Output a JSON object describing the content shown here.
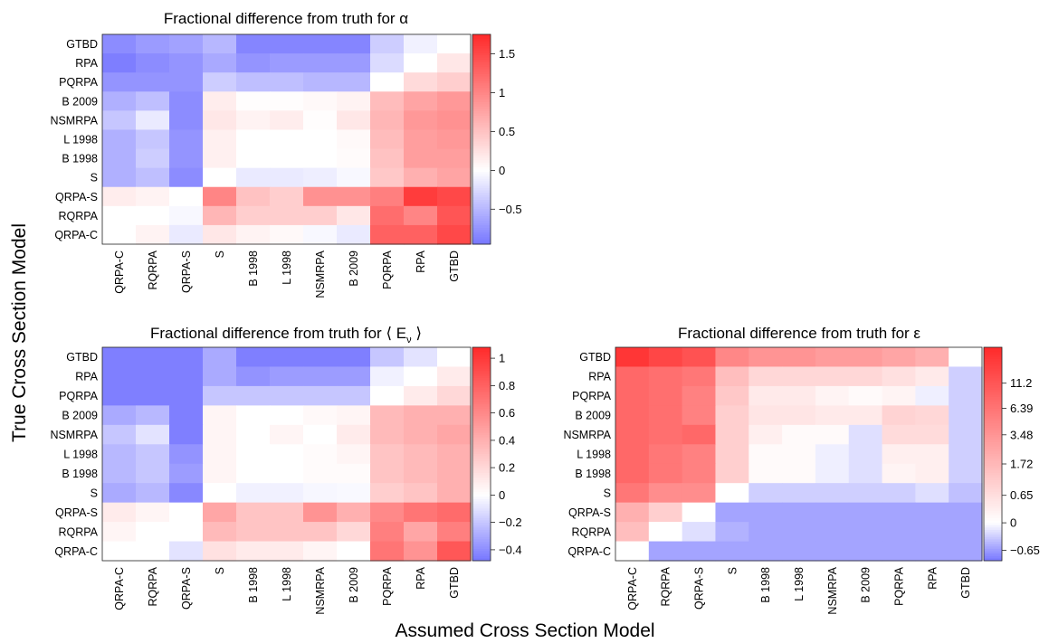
{
  "y_axis_label": "True Cross Section Model",
  "x_axis_label": "Assumed Cross Section Model",
  "chart_data": [
    {
      "type": "heatmap",
      "title": "Fractional difference from truth for α",
      "rows": [
        "GTBD",
        "RPA",
        "PQRPA",
        "B 2009",
        "NSMRPA",
        "L 1998",
        "B 1998",
        "S",
        "QRPA-S",
        "RQRPA",
        "QRPA-C"
      ],
      "columns": [
        "QRPA-C",
        "RQRPA",
        "QRPA-S",
        "S",
        "B 1998",
        "L 1998",
        "NSMRPA",
        "B 2009",
        "PQRPA",
        "RPA",
        "GTBD"
      ],
      "values": [
        [
          -0.8,
          -0.7,
          -0.65,
          -0.5,
          -0.85,
          -0.85,
          -0.85,
          -0.85,
          -0.35,
          -0.1,
          0.0
        ],
        [
          -0.9,
          -0.8,
          -0.75,
          -0.6,
          -0.75,
          -0.7,
          -0.7,
          -0.7,
          -0.25,
          0.0,
          0.2
        ],
        [
          -0.75,
          -0.75,
          -0.75,
          -0.35,
          -0.45,
          -0.45,
          -0.5,
          -0.5,
          0.0,
          0.3,
          0.4
        ],
        [
          -0.55,
          -0.45,
          -0.8,
          0.15,
          0.02,
          0.02,
          0.05,
          0.1,
          0.55,
          0.75,
          0.85
        ],
        [
          -0.4,
          -0.15,
          -0.8,
          0.2,
          0.1,
          0.15,
          0.02,
          0.2,
          0.6,
          0.85,
          0.9
        ],
        [
          -0.55,
          -0.4,
          -0.75,
          0.12,
          0.0,
          0.0,
          0.0,
          0.05,
          0.55,
          0.8,
          0.85
        ],
        [
          -0.55,
          -0.35,
          -0.75,
          0.12,
          0.0,
          0.0,
          0.0,
          0.03,
          0.5,
          0.8,
          0.8
        ],
        [
          -0.55,
          -0.45,
          -0.8,
          0.0,
          -0.15,
          -0.15,
          -0.12,
          -0.05,
          0.45,
          0.65,
          0.75
        ],
        [
          0.15,
          0.1,
          0.0,
          1.0,
          0.5,
          0.4,
          0.9,
          0.9,
          1.05,
          1.6,
          1.5
        ],
        [
          0.0,
          0.0,
          -0.05,
          0.6,
          0.4,
          0.4,
          0.4,
          0.2,
          1.2,
          1.0,
          1.4
        ],
        [
          0.0,
          0.1,
          -0.15,
          0.2,
          0.1,
          0.05,
          -0.05,
          -0.15,
          1.3,
          1.3,
          1.5
        ]
      ],
      "colorbar_ticks": [
        1.5,
        1,
        0.5,
        0,
        -0.5
      ],
      "colorbar_tick_labels": [
        "1.5",
        "1",
        "0.5",
        "0",
        "−0.5"
      ],
      "colorbar_range": [
        -0.95,
        1.75
      ],
      "colors": {
        "negative": "#7777ff",
        "zero": "#ffffff",
        "positive": "#ff2a2a"
      }
    },
    {
      "type": "heatmap",
      "title": "Fractional difference from truth for ⟨ E",
      "title_subscript": "ν",
      "title_suffix": " ⟩",
      "rows": [
        "GTBD",
        "RPA",
        "PQRPA",
        "B 2009",
        "NSMRPA",
        "L 1998",
        "B 1998",
        "S",
        "QRPA-S",
        "RQRPA",
        "QRPA-C"
      ],
      "columns": [
        "QRPA-C",
        "RQRPA",
        "QRPA-S",
        "S",
        "B 1998",
        "L 1998",
        "NSMRPA",
        "B 2009",
        "PQRPA",
        "RPA",
        "GTBD"
      ],
      "values": [
        [
          -0.45,
          -0.45,
          -0.45,
          -0.3,
          -0.45,
          -0.45,
          -0.45,
          -0.45,
          -0.2,
          -0.1,
          0.0
        ],
        [
          -0.45,
          -0.45,
          -0.45,
          -0.3,
          -0.38,
          -0.35,
          -0.35,
          -0.35,
          -0.05,
          0.0,
          0.1
        ],
        [
          -0.45,
          -0.45,
          -0.45,
          -0.2,
          -0.2,
          -0.2,
          -0.2,
          -0.2,
          0.0,
          0.1,
          0.2
        ],
        [
          -0.3,
          -0.25,
          -0.45,
          0.05,
          0.0,
          0.0,
          0.03,
          0.05,
          0.35,
          0.4,
          0.4
        ],
        [
          -0.2,
          -0.1,
          -0.45,
          0.05,
          0.0,
          0.05,
          0.0,
          0.1,
          0.35,
          0.4,
          0.45
        ],
        [
          -0.25,
          -0.2,
          -0.38,
          0.05,
          0.0,
          0.0,
          0.02,
          0.05,
          0.3,
          0.35,
          0.4
        ],
        [
          -0.25,
          -0.2,
          -0.35,
          0.05,
          0.0,
          0.0,
          0.02,
          0.02,
          0.3,
          0.35,
          0.4
        ],
        [
          -0.3,
          -0.25,
          -0.42,
          0.0,
          -0.05,
          -0.05,
          -0.03,
          -0.02,
          0.25,
          0.3,
          0.4
        ],
        [
          0.1,
          0.05,
          0.0,
          0.45,
          0.3,
          0.3,
          0.55,
          0.4,
          0.6,
          0.7,
          0.75
        ],
        [
          0.05,
          0.0,
          0.0,
          0.35,
          0.3,
          0.3,
          0.3,
          0.2,
          0.65,
          0.45,
          0.65
        ],
        [
          0.0,
          0.0,
          -0.1,
          0.15,
          0.1,
          0.1,
          0.05,
          0.0,
          0.7,
          0.55,
          0.85
        ]
      ],
      "colorbar_ticks": [
        1,
        0.8,
        0.6,
        0.4,
        0.2,
        0,
        -0.2,
        -0.4
      ],
      "colorbar_tick_labels": [
        "1",
        "0.8",
        "0.6",
        "0.4",
        "0.2",
        "0",
        "−0.2",
        "−0.4"
      ],
      "colorbar_range": [
        -0.48,
        1.08
      ],
      "colors": {
        "negative": "#7777ff",
        "zero": "#ffffff",
        "positive": "#ff2a2a"
      }
    },
    {
      "type": "heatmap",
      "title": "Fractional difference from truth for ε",
      "rows": [
        "GTBD",
        "RPA",
        "PQRPA",
        "B 2009",
        "NSMRPA",
        "L 1998",
        "B 1998",
        "S",
        "QRPA-S",
        "RQRPA",
        "QRPA-C"
      ],
      "columns": [
        "QRPA-C",
        "RQRPA",
        "QRPA-S",
        "S",
        "B 1998",
        "L 1998",
        "NSMRPA",
        "B 2009",
        "PQRPA",
        "RPA",
        "GTBD"
      ],
      "values": [
        [
          20.0,
          15.0,
          12.0,
          4.5,
          3.5,
          3.5,
          3.0,
          3.0,
          2.5,
          2.0,
          0.0
        ],
        [
          8.0,
          7.0,
          6.0,
          1.5,
          0.8,
          0.8,
          0.8,
          0.8,
          0.6,
          0.4,
          -0.3
        ],
        [
          8.0,
          7.0,
          5.0,
          1.2,
          0.4,
          0.4,
          0.2,
          0.1,
          0.2,
          -0.1,
          -0.3
        ],
        [
          8.0,
          7.0,
          5.0,
          1.0,
          0.5,
          0.5,
          0.4,
          0.4,
          0.9,
          0.8,
          -0.3
        ],
        [
          8.0,
          7.0,
          8.0,
          1.0,
          0.3,
          0.1,
          0.1,
          -0.2,
          0.7,
          0.7,
          -0.3
        ],
        [
          8.0,
          6.0,
          5.0,
          1.0,
          0.1,
          0.1,
          -0.1,
          -0.2,
          0.3,
          0.3,
          -0.3
        ],
        [
          8.0,
          6.0,
          5.0,
          1.0,
          0.1,
          0.1,
          -0.1,
          -0.2,
          0.2,
          0.3,
          -0.3
        ],
        [
          6.0,
          4.0,
          4.0,
          0.0,
          -0.3,
          -0.3,
          -0.3,
          -0.3,
          -0.3,
          -0.2,
          -0.4
        ],
        [
          2.0,
          1.0,
          0.0,
          -0.6,
          -0.6,
          -0.6,
          -0.6,
          -0.6,
          -0.6,
          -0.6,
          -0.6
        ],
        [
          1.5,
          0.0,
          -0.2,
          -0.5,
          -0.6,
          -0.6,
          -0.6,
          -0.6,
          -0.6,
          -0.6,
          -0.6
        ],
        [
          0.0,
          -0.6,
          -0.6,
          -0.6,
          -0.6,
          -0.6,
          -0.6,
          -0.6,
          -0.6,
          -0.6,
          -0.6
        ]
      ],
      "colorbar_ticks": [
        11.2,
        6.39,
        3.48,
        1.72,
        0.65,
        0,
        -0.65
      ],
      "colorbar_tick_labels": [
        "11.2",
        "6.39",
        "3.48",
        "1.72",
        "0.65",
        "0",
        "−0.65"
      ],
      "colorbar_scale": "asinh",
      "colorbar_range": [
        -0.95,
        25
      ],
      "colors": {
        "negative": "#7777ff",
        "zero": "#ffffff",
        "positive": "#ff2a2a"
      }
    }
  ]
}
